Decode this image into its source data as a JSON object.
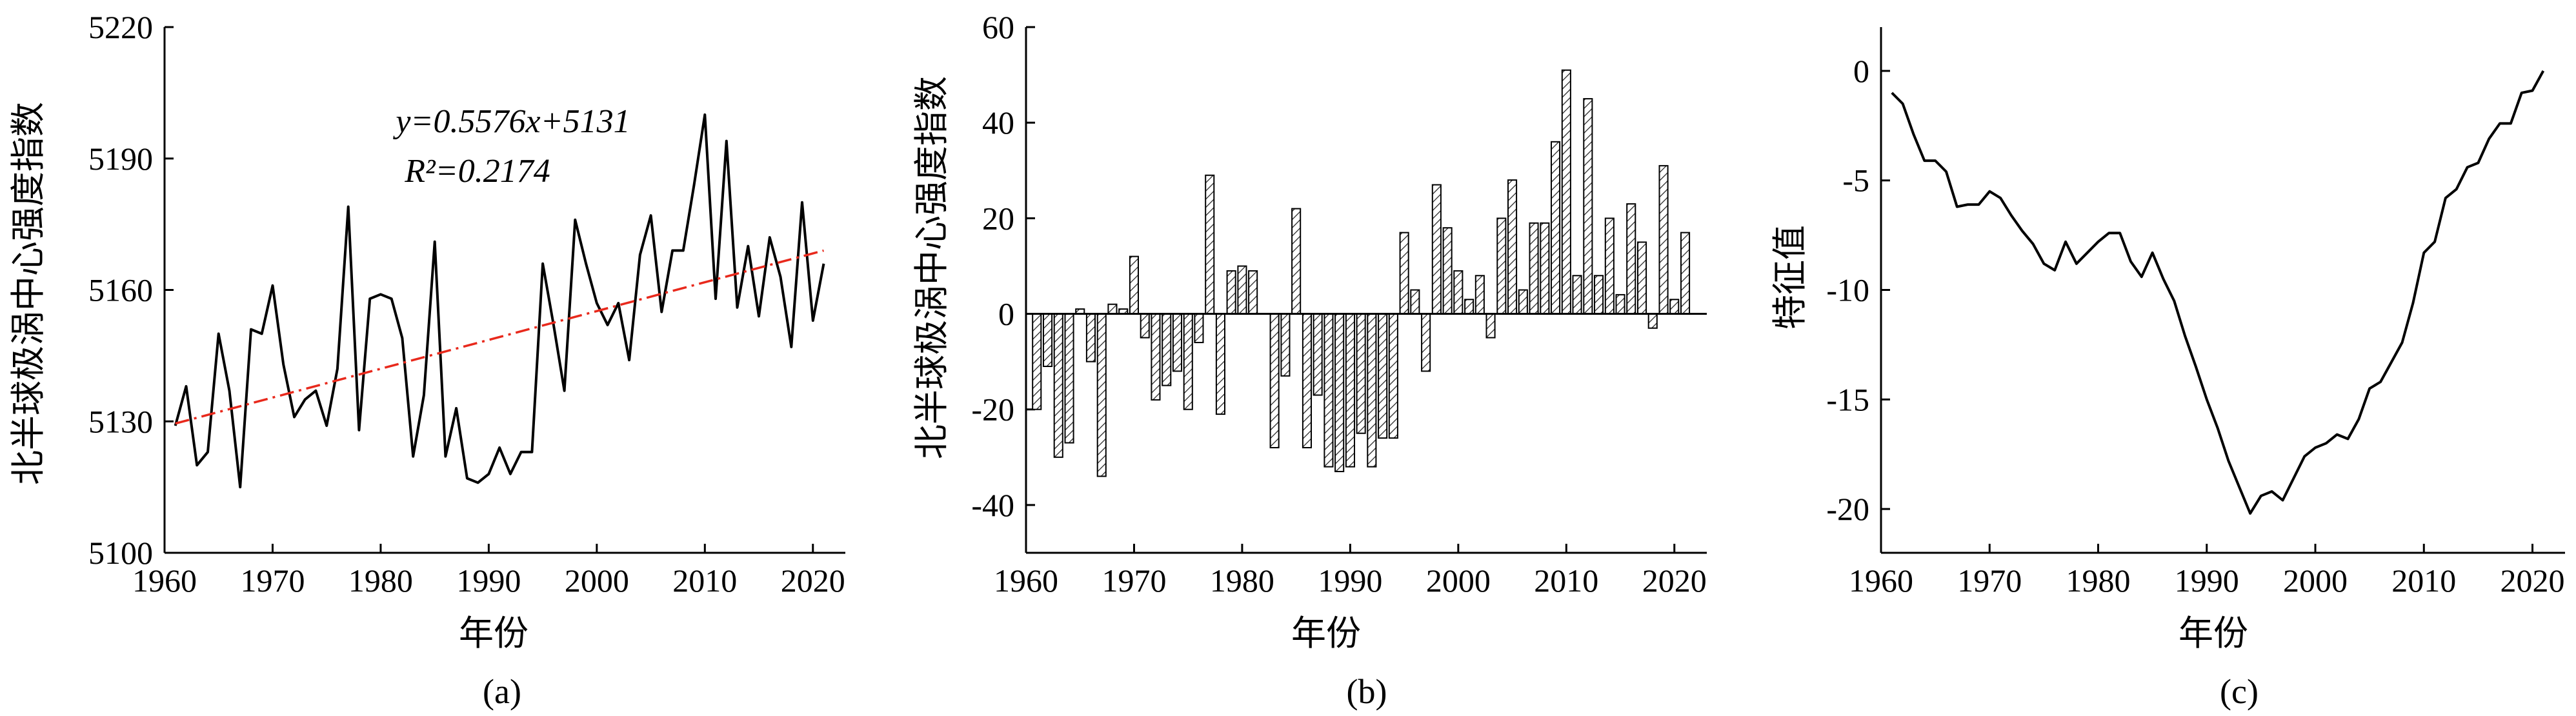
{
  "figure": {
    "panels": [
      {
        "id": "a",
        "caption": "(a)",
        "xlabel": "年份",
        "ylabel": "北半球极涡中心强度指数"
      },
      {
        "id": "b",
        "caption": "(b)",
        "xlabel": "年份",
        "ylabel": "北半球极涡中心强度指数"
      },
      {
        "id": "c",
        "caption": "(c)",
        "xlabel": "年份",
        "ylabel": "特征值"
      }
    ],
    "annotation_a": {
      "equation": "y=0.5576x+5131",
      "r2": "R²=0.2174"
    }
  },
  "chart_data": [
    {
      "type": "line",
      "xlabel": "年份",
      "ylabel": "北半球极涡中心强度指数",
      "xlim": [
        1960,
        2023
      ],
      "ylim": [
        5100,
        5220
      ],
      "xticks": [
        1960,
        1970,
        1980,
        1990,
        2000,
        2010,
        2020
      ],
      "yticks": [
        5100,
        5130,
        5160,
        5190,
        5220
      ],
      "series": [
        {
          "style": "solid",
          "color": "#000000",
          "x": [
            1961,
            1962,
            1963,
            1964,
            1965,
            1966,
            1967,
            1968,
            1969,
            1970,
            1971,
            1972,
            1973,
            1974,
            1975,
            1976,
            1977,
            1978,
            1979,
            1980,
            1981,
            1982,
            1983,
            1984,
            1985,
            1986,
            1987,
            1988,
            1989,
            1990,
            1991,
            1992,
            1993,
            1994,
            1995,
            1996,
            1997,
            1998,
            1999,
            2000,
            2001,
            2002,
            2003,
            2004,
            2005,
            2006,
            2007,
            2008,
            2009,
            2010,
            2011,
            2012,
            2013,
            2014,
            2015,
            2016,
            2017,
            2018,
            2019,
            2020,
            2021
          ],
          "y": [
            5129,
            5138,
            5120,
            5123,
            5150,
            5137,
            5115,
            5151,
            5150,
            5161,
            5143,
            5131,
            5135,
            5137,
            5129,
            5142,
            5179,
            5128,
            5158,
            5159,
            5158,
            5149,
            5122,
            5136,
            5171,
            5122,
            5133,
            5117,
            5116,
            5118,
            5124,
            5118,
            5123,
            5123,
            5166,
            5152,
            5137,
            5176,
            5166,
            5157,
            5152,
            5157,
            5144,
            5168,
            5177,
            5155,
            5169,
            5169,
            5184,
            5200,
            5158,
            5194,
            5156,
            5170,
            5154,
            5172,
            5163,
            5147,
            5180,
            5153,
            5166
          ]
        },
        {
          "style": "dash-dot",
          "color": "#e8291c",
          "kind": "linear-fit",
          "x": [
            1961,
            2021
          ],
          "y": [
            5129.5,
            5169
          ]
        }
      ]
    },
    {
      "type": "bar",
      "xlabel": "年份",
      "ylabel": "北半球极涡中心强度指数",
      "xlim": [
        1960,
        2023
      ],
      "ylim": [
        -50,
        60
      ],
      "xticks": [
        1960,
        1970,
        1980,
        1990,
        2000,
        2010,
        2020
      ],
      "yticks": [
        -40,
        -20,
        0,
        20,
        40,
        60
      ],
      "fill": "hatched",
      "x": [
        1961,
        1962,
        1963,
        1964,
        1965,
        1966,
        1967,
        1968,
        1969,
        1970,
        1971,
        1972,
        1973,
        1974,
        1975,
        1976,
        1977,
        1978,
        1979,
        1980,
        1981,
        1982,
        1983,
        1984,
        1985,
        1986,
        1987,
        1988,
        1989,
        1990,
        1991,
        1992,
        1993,
        1994,
        1995,
        1996,
        1997,
        1998,
        1999,
        2000,
        2001,
        2002,
        2003,
        2004,
        2005,
        2006,
        2007,
        2008,
        2009,
        2010,
        2011,
        2012,
        2013,
        2014,
        2015,
        2016,
        2017,
        2018,
        2019,
        2020,
        2021
      ],
      "values": [
        -20,
        -11,
        -30,
        -27,
        1,
        -10,
        -34,
        2,
        1,
        12,
        -5,
        -18,
        -15,
        -12,
        -20,
        -6,
        29,
        -21,
        9,
        10,
        9,
        0,
        -28,
        -13,
        22,
        -28,
        -17,
        -32,
        -33,
        -32,
        -25,
        -32,
        -26,
        -26,
        17,
        5,
        -12,
        27,
        18,
        9,
        3,
        8,
        -5,
        20,
        28,
        5,
        19,
        19,
        36,
        51,
        8,
        45,
        8,
        20,
        4,
        23,
        15,
        -3,
        31,
        3,
        17
      ]
    },
    {
      "type": "line",
      "xlabel": "年份",
      "ylabel": "特征值",
      "xlim": [
        1960,
        2023
      ],
      "ylim": [
        -22,
        2
      ],
      "xticks": [
        1960,
        1970,
        1980,
        1990,
        2000,
        2010,
        2020
      ],
      "yticks": [
        -20,
        -15,
        -10,
        -5,
        0
      ],
      "series": [
        {
          "style": "solid",
          "color": "#000000",
          "x": [
            1961,
            1962,
            1963,
            1964,
            1965,
            1966,
            1967,
            1968,
            1969,
            1970,
            1971,
            1972,
            1973,
            1974,
            1975,
            1976,
            1977,
            1978,
            1979,
            1980,
            1981,
            1982,
            1983,
            1984,
            1985,
            1986,
            1987,
            1988,
            1989,
            1990,
            1991,
            1992,
            1993,
            1994,
            1995,
            1996,
            1997,
            1998,
            1999,
            2000,
            2001,
            2002,
            2003,
            2004,
            2005,
            2006,
            2007,
            2008,
            2009,
            2010,
            2011,
            2012,
            2013,
            2014,
            2015,
            2016,
            2017,
            2018,
            2019,
            2020,
            2021
          ],
          "y": [
            -1.0,
            -1.5,
            -2.9,
            -4.1,
            -4.1,
            -4.6,
            -6.2,
            -6.1,
            -6.1,
            -5.5,
            -5.8,
            -6.6,
            -7.3,
            -7.9,
            -8.8,
            -9.1,
            -7.8,
            -8.8,
            -8.3,
            -7.8,
            -7.4,
            -7.4,
            -8.7,
            -9.4,
            -8.3,
            -9.5,
            -10.5,
            -12.1,
            -13.5,
            -15.0,
            -16.3,
            -17.8,
            -19.0,
            -20.2,
            -19.4,
            -19.2,
            -19.6,
            -18.6,
            -17.6,
            -17.2,
            -17.0,
            -16.6,
            -16.8,
            -15.9,
            -14.5,
            -14.2,
            -13.3,
            -12.4,
            -10.6,
            -8.3,
            -7.8,
            -5.8,
            -5.4,
            -4.4,
            -4.2,
            -3.1,
            -2.4,
            -2.4,
            -1.0,
            -0.9,
            0.0
          ]
        }
      ]
    }
  ]
}
